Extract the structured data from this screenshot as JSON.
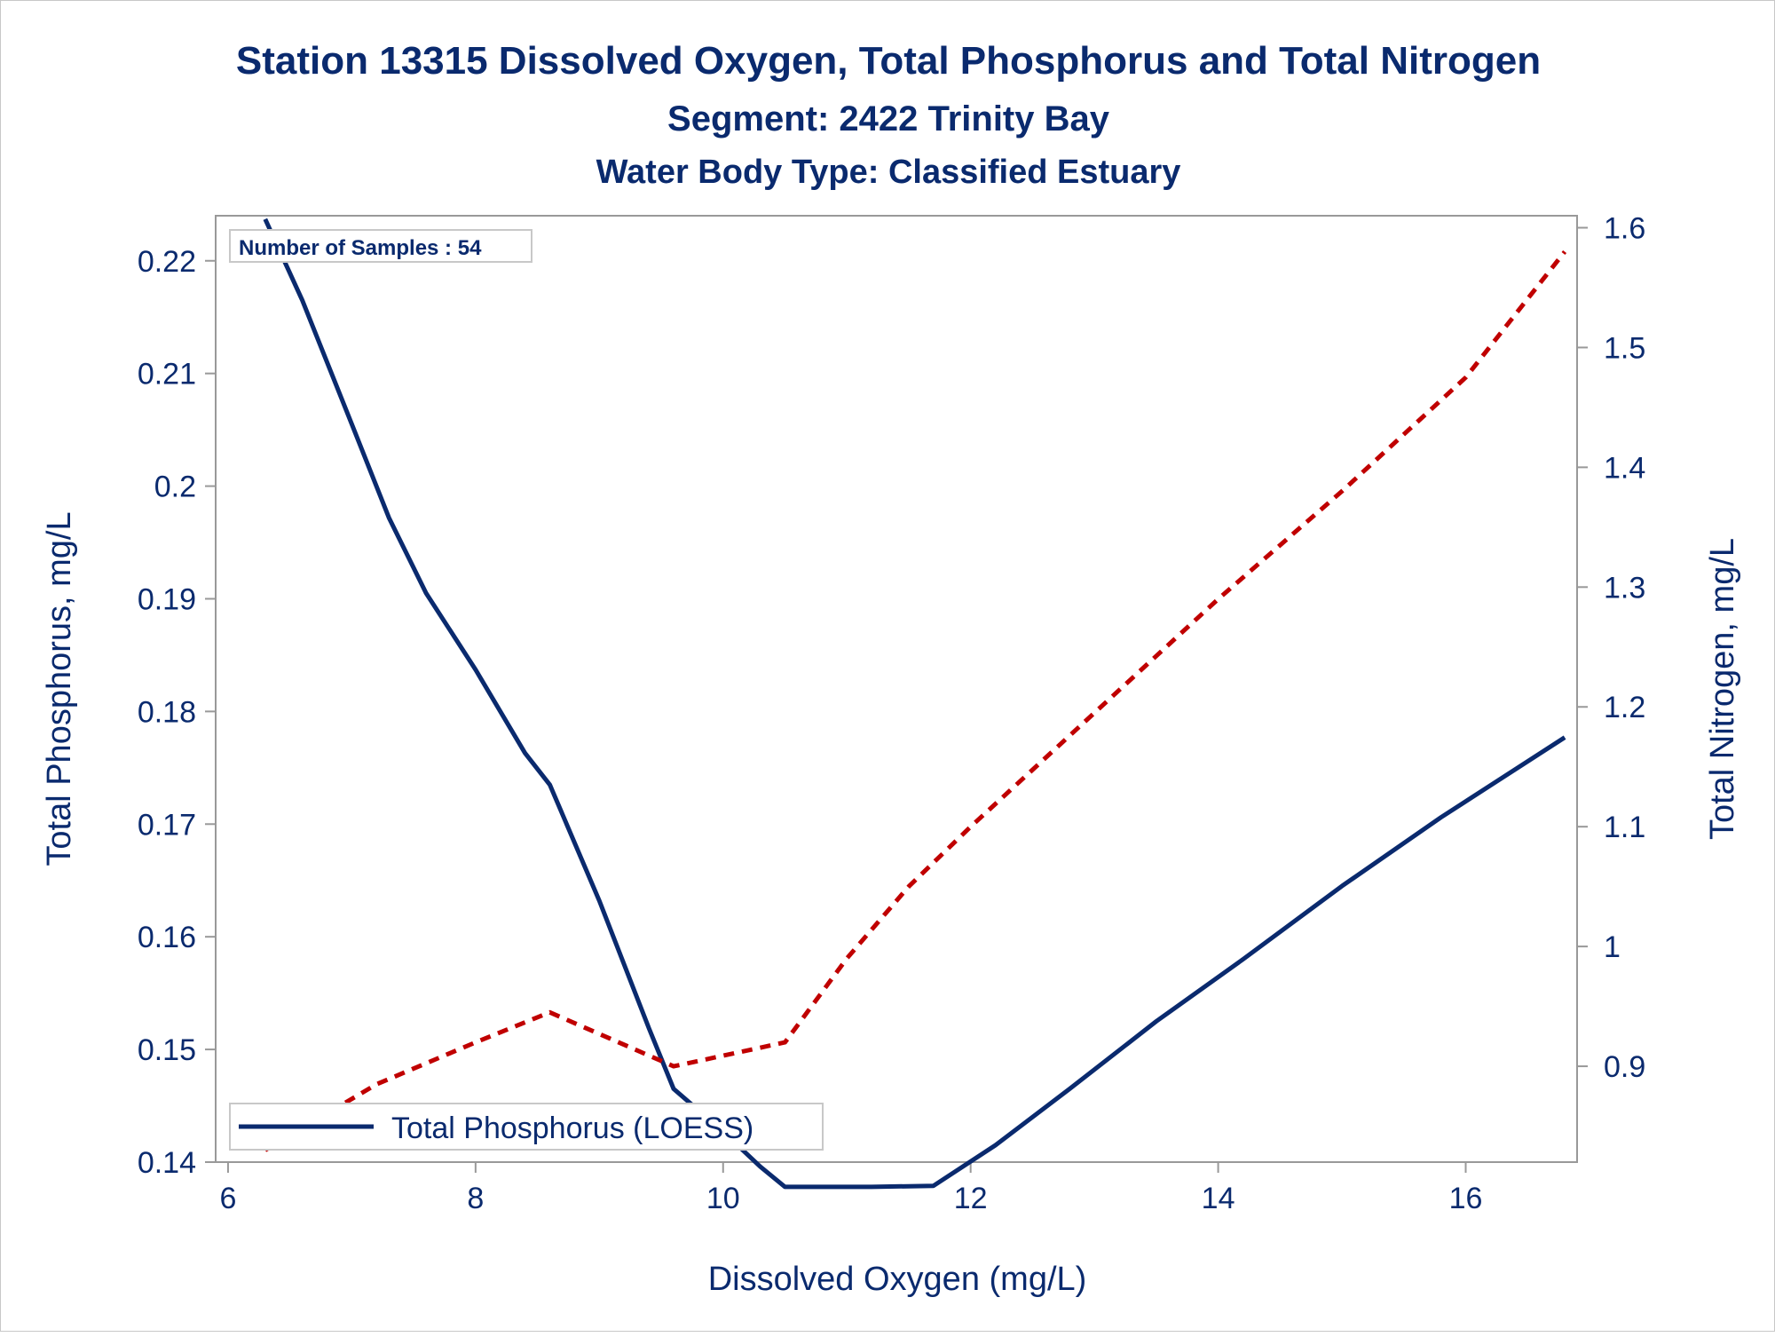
{
  "chart_data": {
    "type": "line",
    "title": "Station 13315  Dissolved Oxygen, Total Phosphorus and Total Nitrogen",
    "subtitle": "Segment: 2422  Trinity Bay",
    "subtitle2": "Water Body Type: Classified Estuary",
    "xlabel": "Dissolved Oxygen (mg/L)",
    "ylabel_left": "Total Phosphorus, mg/L",
    "ylabel_right": "Total Nitrogen, mg/L",
    "inset_label": "Number of Samples : 54",
    "legend": {
      "position": "bottom-left",
      "entries": [
        "Total Phosphorus (LOESS)"
      ]
    },
    "grid": false,
    "xlim": [
      5.9,
      16.9
    ],
    "ylim_left": [
      0.14,
      0.224
    ],
    "ylim_right": [
      0.82,
      1.61
    ],
    "x_ticks": [
      "6",
      "8",
      "10",
      "12",
      "14",
      "16"
    ],
    "y_left_ticks": [
      "0.14",
      "0.15",
      "0.16",
      "0.17",
      "0.18",
      "0.19",
      "0.2",
      "0.21",
      "0.22"
    ],
    "y_right_ticks": [
      "0.9",
      "1",
      "1.1",
      "1.2",
      "1.3",
      "1.4",
      "1.5",
      "1.6"
    ],
    "colors": {
      "text": "#0a2a6e",
      "phosphorus": "#0a2a6e",
      "nitrogen": "#c00000",
      "axis": "#999999"
    },
    "series": [
      {
        "name": "Total Phosphorus (LOESS)",
        "axis": "left",
        "style": "solid",
        "x": [
          6.3,
          6.6,
          7.0,
          7.3,
          7.6,
          8.0,
          8.4,
          8.6,
          9.0,
          9.4,
          9.6,
          10.0,
          10.3,
          10.5,
          10.8,
          11.2,
          11.7,
          12.2,
          12.8,
          13.5,
          14.2,
          15.0,
          15.8,
          16.8
        ],
        "values": [
          0.2237,
          0.2165,
          0.2055,
          0.1972,
          0.1905,
          0.1837,
          0.1763,
          0.1735,
          0.1632,
          0.1519,
          0.1465,
          0.1427,
          0.1396,
          0.1378,
          0.1378,
          0.1378,
          0.1379,
          0.1415,
          0.1465,
          0.1525,
          0.158,
          0.1645,
          0.1706,
          0.1777
        ]
      },
      {
        "name": "",
        "axis": "right",
        "style": "dashed",
        "x": [
          6.3,
          7.2,
          8.0,
          8.6,
          9.6,
          10.5,
          11.0,
          11.5,
          12.0,
          13.0,
          14.0,
          15.0,
          16.0,
          16.8
        ],
        "values": [
          0.83,
          0.885,
          0.92,
          0.945,
          0.9,
          0.92,
          0.99,
          1.05,
          1.1,
          1.195,
          1.29,
          1.38,
          1.475,
          1.58
        ]
      }
    ]
  }
}
